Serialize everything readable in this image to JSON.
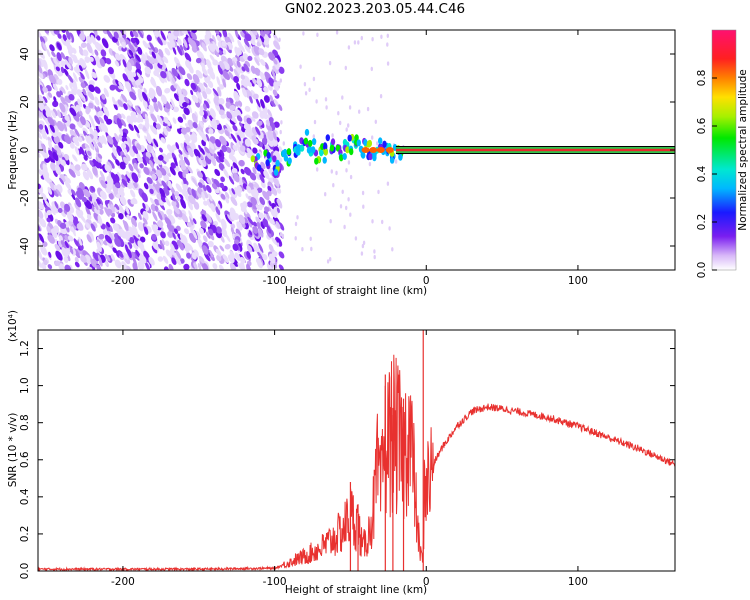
{
  "title": "GN02.2023.203.05.44.C46",
  "colors": {
    "snr_line": "#e8312f",
    "axis": "#000000",
    "hz_band_line": "#000000"
  },
  "chart_data": [
    {
      "type": "heatmap",
      "title": "GN02.2023.203.05.44.C46",
      "xlabel": "Height of straight line (km)",
      "ylabel": "Frequency (Hz)",
      "xlim": [
        -256,
        164
      ],
      "ylim": [
        -50,
        50
      ],
      "xticks": [
        -200,
        -100,
        0,
        100
      ],
      "yticks": [
        -40,
        -20,
        0,
        20,
        40
      ],
      "colormap": "rainbow",
      "colorbar": {
        "label": "Normalized spectral amplitude",
        "range": [
          0,
          1
        ],
        "ticks": [
          "0.0",
          "0.2",
          "0.4",
          "0.6",
          "0.8"
        ]
      },
      "features": {
        "noise_region_x": [
          -256,
          -98
        ],
        "onset_x": -110,
        "tone_frequency_hz": 0,
        "tone_x": [
          -20,
          164
        ]
      }
    },
    {
      "type": "line",
      "xlabel": "Height of straight line (km)",
      "ylabel": "SNR (10 * v/v)",
      "scale_label": "(x10⁴)",
      "xlim": [
        -256,
        164
      ],
      "ylim": [
        0,
        1.3
      ],
      "xticks": [
        -200,
        -100,
        0,
        100
      ],
      "yticks": [
        "0.0",
        "0.2",
        "0.4",
        "0.6",
        "0.8",
        "1.0",
        "1.2"
      ],
      "series": [
        {
          "x": [
            -256,
            -150,
            -100,
            -95,
            -80,
            -70,
            -60,
            -55,
            -50,
            -45,
            -42,
            -38,
            -35,
            -32,
            -30,
            -28,
            -25,
            -22,
            -20,
            -18,
            -15,
            -12,
            -10,
            -8,
            -6,
            -4,
            -2,
            -1,
            0,
            2,
            5,
            10,
            20,
            30,
            40,
            50,
            60,
            80,
            100,
            120,
            140,
            164
          ],
          "y": [
            0.01,
            0.01,
            0.015,
            0.03,
            0.08,
            0.12,
            0.18,
            0.22,
            0.3,
            0.25,
            0.12,
            0.2,
            0.32,
            0.55,
            0.4,
            0.65,
            0.7,
            0.75,
            0.72,
            0.7,
            0.6,
            0.78,
            0.68,
            0.5,
            0.25,
            0.1,
            0.05,
            0.6,
            0.45,
            0.5,
            0.58,
            0.66,
            0.78,
            0.86,
            0.885,
            0.875,
            0.86,
            0.83,
            0.78,
            0.72,
            0.66,
            0.575
          ]
        }
      ],
      "spikes": [
        {
          "x": -50,
          "y": 0.48
        },
        {
          "x": -45,
          "y": 0.36
        },
        {
          "x": -27,
          "y": 1.06
        },
        {
          "x": -22,
          "y": 0.88
        },
        {
          "x": -15,
          "y": 0.93
        },
        {
          "x": -2,
          "y": 1.3
        }
      ]
    }
  ]
}
